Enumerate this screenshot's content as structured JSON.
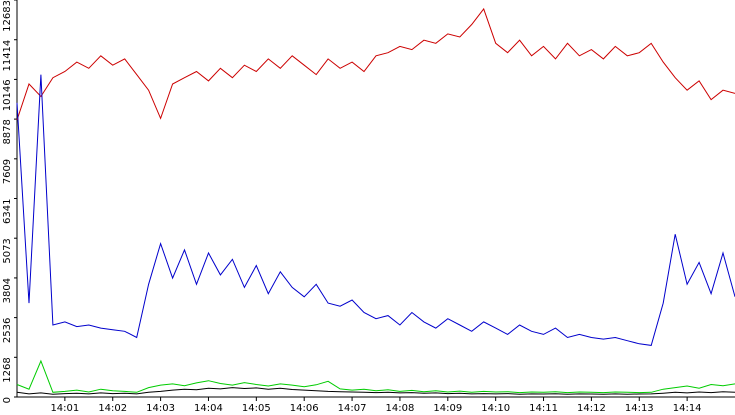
{
  "chart_data": {
    "type": "line",
    "x": [
      0,
      0.25,
      0.5,
      0.75,
      1,
      1.25,
      1.5,
      1.75,
      2,
      2.25,
      2.5,
      2.75,
      3,
      3.25,
      3.5,
      3.75,
      4,
      4.25,
      4.5,
      4.75,
      5,
      5.25,
      5.5,
      5.75,
      6,
      6.25,
      6.5,
      6.75,
      7,
      7.25,
      7.5,
      7.75,
      8,
      8.25,
      8.5,
      8.75,
      9,
      9.25,
      9.5,
      9.75,
      10,
      10.25,
      10.5,
      10.75,
      11,
      11.25,
      11.5,
      11.75,
      12,
      12.25,
      12.5,
      12.75,
      13,
      13.25,
      13.5,
      13.75,
      14,
      14.25,
      14.5,
      14.75,
      15
    ],
    "xlim": [
      0,
      15
    ],
    "xticks": [
      {
        "value": 1,
        "label": "14:01"
      },
      {
        "value": 2,
        "label": "14:02"
      },
      {
        "value": 3,
        "label": "14:03"
      },
      {
        "value": 4,
        "label": "14:04"
      },
      {
        "value": 5,
        "label": "14:05"
      },
      {
        "value": 6,
        "label": "14:06"
      },
      {
        "value": 7,
        "label": "14:07"
      },
      {
        "value": 8,
        "label": "14:08"
      },
      {
        "value": 9,
        "label": "14:09"
      },
      {
        "value": 10,
        "label": "14:10"
      },
      {
        "value": 11,
        "label": "14:11"
      },
      {
        "value": 12,
        "label": "14:12"
      },
      {
        "value": 13,
        "label": "14:13"
      },
      {
        "value": 14,
        "label": "14:14"
      }
    ],
    "ylim": [
      0,
      12683
    ],
    "yticks": [
      0,
      1268,
      2536,
      3804,
      5073,
      6341,
      7609,
      8878,
      10146,
      11414,
      12683
    ],
    "series": [
      {
        "color": "#cc0000",
        "values": [
          8850,
          10000,
          9600,
          10200,
          10400,
          10700,
          10500,
          10900,
          10600,
          10800,
          10300,
          9800,
          8900,
          10000,
          10200,
          10400,
          10100,
          10500,
          10200,
          10600,
          10400,
          10800,
          10500,
          10900,
          10600,
          10300,
          10800,
          10500,
          10700,
          10400,
          10900,
          11000,
          11200,
          11100,
          11400,
          11300,
          11600,
          11500,
          11900,
          12400,
          11300,
          11000,
          11400,
          10900,
          11200,
          10800,
          11300,
          10900,
          11100,
          10800,
          11200,
          10900,
          11000,
          11300,
          10700,
          10200,
          9800,
          10100,
          9500,
          9800,
          9700
        ]
      },
      {
        "color": "#0000cc",
        "values": [
          9400,
          3000,
          10300,
          2300,
          2400,
          2250,
          2300,
          2200,
          2150,
          2100,
          1900,
          3600,
          4900,
          3800,
          4700,
          3600,
          4600,
          3900,
          4400,
          3500,
          4200,
          3300,
          4000,
          3500,
          3200,
          3600,
          3000,
          2900,
          3100,
          2700,
          2500,
          2600,
          2300,
          2700,
          2400,
          2200,
          2500,
          2300,
          2100,
          2400,
          2200,
          2000,
          2300,
          2100,
          2000,
          2200,
          1900,
          2000,
          1900,
          1850,
          1900,
          1800,
          1700,
          1650,
          3000,
          5200,
          3600,
          4300,
          3300,
          4600,
          3200
        ]
      },
      {
        "color": "#00cc00",
        "values": [
          400,
          250,
          1150,
          150,
          180,
          220,
          160,
          250,
          200,
          180,
          150,
          300,
          380,
          420,
          360,
          450,
          520,
          430,
          380,
          460,
          400,
          350,
          420,
          380,
          330,
          390,
          500,
          260,
          220,
          250,
          200,
          230,
          180,
          210,
          170,
          200,
          160,
          190,
          150,
          180,
          160,
          170,
          140,
          160,
          150,
          170,
          140,
          160,
          150,
          140,
          160,
          150,
          140,
          150,
          250,
          300,
          350,
          280,
          400,
          360,
          420
        ]
      },
      {
        "color": "#000000",
        "values": [
          150,
          100,
          130,
          90,
          110,
          120,
          100,
          130,
          110,
          120,
          100,
          150,
          180,
          220,
          250,
          230,
          280,
          260,
          300,
          270,
          290,
          250,
          280,
          240,
          220,
          200,
          180,
          170,
          160,
          150,
          140,
          150,
          130,
          140,
          120,
          130,
          110,
          120,
          100,
          110,
          100,
          110,
          90,
          100,
          95,
          105,
          90,
          100,
          95,
          90,
          100,
          90,
          95,
          100,
          120,
          150,
          130,
          160,
          140,
          170,
          150
        ]
      }
    ]
  }
}
